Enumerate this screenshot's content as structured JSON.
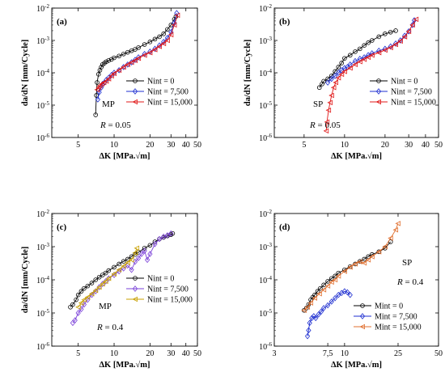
{
  "chart_data": [
    {
      "type": "line",
      "panel_label": "(a)",
      "xlabel": "ΔK [MPa.√m]",
      "ylabel": "da/dN [mm/Cycle]",
      "xscale": "log",
      "yscale": "log",
      "xlim": [
        3,
        50
      ],
      "ylim": [
        1e-06,
        0.01
      ],
      "xticks": [
        5,
        10,
        20,
        30,
        40,
        50
      ],
      "yticks": [
        1e-06,
        1e-05,
        0.0001,
        0.001,
        0.01
      ],
      "annotations": [
        "MP",
        "R = 0.05"
      ],
      "legend": "center-right",
      "series": [
        {
          "name": "Nint = 0",
          "color": "#000000",
          "marker": "circle",
          "x": [
            7.0,
            7.1,
            7.2,
            7.4,
            7.6,
            7.8,
            8.0,
            8.3,
            8.6,
            9.0,
            9.5,
            10,
            11,
            12,
            13,
            14,
            15,
            16,
            18,
            20,
            22,
            24,
            26,
            28,
            30,
            32,
            33
          ],
          "y": [
            5e-06,
            2e-05,
            5e-05,
            9e-05,
            0.00012,
            0.00015,
            0.00018,
            0.0002,
            0.00022,
            0.00024,
            0.00026,
            0.00029,
            0.00033,
            0.00038,
            0.00043,
            0.00048,
            0.00053,
            0.0006,
            0.00075,
            0.0009,
            0.0011,
            0.0013,
            0.0016,
            0.0022,
            0.003,
            0.0045,
            0.0055
          ]
        },
        {
          "name": "Nint = 7,500",
          "color": "#1f2fd0",
          "marker": "diamond",
          "x": [
            7.3,
            7.5,
            7.8,
            8.0,
            8.3,
            8.6,
            9.0,
            9.5,
            10,
            11,
            12,
            13,
            14,
            15,
            16,
            18,
            20,
            22,
            24,
            26,
            28,
            30,
            32,
            33.5
          ],
          "y": [
            1.5e-05,
            2.5e-05,
            3.5e-05,
            4.5e-05,
            5e-05,
            6e-05,
            7e-05,
            8.5e-05,
            0.0001,
            0.00012,
            0.00015,
            0.00018,
            0.00021,
            0.00025,
            0.0003,
            0.00038,
            0.00045,
            0.00055,
            0.0007,
            0.0009,
            0.0012,
            0.0018,
            0.0035,
            0.007
          ]
        },
        {
          "name": "Nint = 15,000",
          "color": "#e01818",
          "marker": "triangle-left",
          "x": [
            7.2,
            7.4,
            7.6,
            7.9,
            8.2,
            8.6,
            9.0,
            9.5,
            10,
            11,
            12,
            13,
            14,
            15,
            16,
            18,
            20,
            22,
            24,
            26,
            28,
            30,
            32,
            34
          ],
          "y": [
            3e-05,
            3.5e-05,
            4e-05,
            4.5e-05,
            5e-05,
            5.5e-05,
            6.5e-05,
            8e-05,
            9.5e-05,
            0.00012,
            0.00015,
            0.00018,
            0.00021,
            0.00024,
            0.00028,
            0.00035,
            0.00042,
            0.00052,
            0.00065,
            0.0008,
            0.001,
            0.0015,
            0.003,
            0.006
          ]
        }
      ]
    },
    {
      "type": "line",
      "panel_label": "(b)",
      "xlabel": "ΔK [MPa.√m]",
      "ylabel": "da/dN [mm/Cycle]",
      "xscale": "log",
      "yscale": "log",
      "xlim": [
        3,
        50
      ],
      "ylim": [
        1e-06,
        0.01
      ],
      "xticks": [
        5,
        10,
        20,
        30,
        40,
        50
      ],
      "yticks": [
        1e-06,
        1e-05,
        0.0001,
        0.001,
        0.01
      ],
      "annotations": [
        "SP",
        "R = 0.05"
      ],
      "legend": "center-right",
      "series": [
        {
          "name": "Nint = 0",
          "color": "#000000",
          "marker": "circle",
          "x": [
            6.5,
            6.8,
            7.0,
            7.5,
            8.0,
            8.5,
            9.0,
            9.5,
            10,
            11,
            12,
            13,
            14,
            15,
            16,
            18,
            20,
            22,
            24
          ],
          "y": [
            3.5e-05,
            4.5e-05,
            5.5e-05,
            6.5e-05,
            8e-05,
            0.00011,
            0.00015,
            0.0002,
            0.00028,
            0.00035,
            0.00045,
            0.00055,
            0.0007,
            0.00085,
            0.001,
            0.0013,
            0.0016,
            0.0018,
            0.002
          ]
        },
        {
          "name": "Nint = 7,500",
          "color": "#1f2fd0",
          "marker": "diamond",
          "x": [
            7.5,
            8.0,
            8.5,
            9.0,
            9.5,
            10,
            10.5,
            11,
            12,
            13,
            14,
            15,
            16,
            18,
            20,
            22,
            24,
            26,
            28,
            30,
            32,
            33
          ],
          "y": [
            5e-05,
            6.5e-05,
            8e-05,
            0.0001,
            0.00012,
            0.00014,
            0.00015,
            0.00018,
            0.00023,
            0.00027,
            0.0003,
            0.00035,
            0.0004,
            0.00048,
            0.00055,
            0.00065,
            0.0008,
            0.001,
            0.0014,
            0.0019,
            0.003,
            0.0042
          ]
        },
        {
          "name": "Nint = 15,000",
          "color": "#e01818",
          "marker": "triangle-left",
          "x": [
            7.3,
            7.4,
            7.6,
            7.8,
            8.0,
            8.3,
            8.6,
            9.0,
            9.5,
            10,
            11,
            12,
            13,
            14,
            15,
            16,
            18,
            20,
            22,
            24,
            26,
            28,
            30,
            32,
            34
          ],
          "y": [
            1.6e-06,
            3e-06,
            7e-06,
            1.2e-05,
            2e-05,
            3.5e-05,
            5e-05,
            7e-05,
            9e-05,
            0.00011,
            0.00014,
            0.00018,
            0.00022,
            0.00026,
            0.0003,
            0.00035,
            0.00042,
            0.0005,
            0.0006,
            0.00075,
            0.00095,
            0.0013,
            0.0019,
            0.003,
            0.0045
          ]
        }
      ]
    },
    {
      "type": "line",
      "panel_label": "(c)",
      "xlabel": "ΔK [MPa.√m]",
      "ylabel": "da/dN [mm/Cycle]",
      "xscale": "log",
      "yscale": "log",
      "xlim": [
        3,
        50
      ],
      "ylim": [
        1e-06,
        0.01
      ],
      "xticks": [
        5,
        10,
        20,
        30,
        40,
        50
      ],
      "yticks": [
        1e-06,
        1e-05,
        0.0001,
        0.001,
        0.01
      ],
      "annotations": [
        "MP",
        "R = 0.4"
      ],
      "legend": "center-right",
      "series": [
        {
          "name": "Nint = 0",
          "color": "#000000",
          "marker": "circle",
          "x": [
            4.3,
            4.5,
            4.8,
            5.0,
            5.3,
            5.6,
            6.0,
            6.5,
            7.0,
            7.5,
            8.0,
            8.5,
            9.0,
            10,
            11,
            12,
            13,
            14,
            15,
            16,
            18,
            20,
            22,
            24,
            26,
            28,
            30,
            31
          ],
          "y": [
            1.5e-05,
            1.8e-05,
            2.5e-05,
            3.5e-05,
            4.5e-05,
            5.5e-05,
            6.5e-05,
            8e-05,
            0.0001,
            0.00012,
            0.00014,
            0.00016,
            0.00019,
            0.00024,
            0.0003,
            0.00036,
            0.00042,
            0.0005,
            0.00058,
            0.00068,
            0.0009,
            0.0011,
            0.0014,
            0.0017,
            0.0019,
            0.0021,
            0.0023,
            0.0025
          ]
        },
        {
          "name": "Nint = 7,500",
          "color": "#7a40d8",
          "marker": "diamond",
          "x": [
            4.5,
            4.7,
            5.0,
            5.3,
            5.6,
            6.0,
            6.5,
            7.0,
            7.5,
            8.0,
            8.5,
            9.0,
            10,
            11,
            12,
            13,
            14,
            15,
            16,
            17,
            18,
            19,
            20,
            22,
            24,
            26,
            28,
            30
          ],
          "y": [
            5e-06,
            6e-06,
            1e-05,
            1.3e-05,
            1.8e-05,
            2.5e-05,
            3.5e-05,
            4.5e-05,
            6e-05,
            7.5e-05,
            9e-05,
            0.00011,
            0.00014,
            0.00018,
            0.00022,
            0.00027,
            0.0002,
            0.00035,
            0.00045,
            0.0006,
            0.00075,
            0.0004,
            0.0006,
            0.0012,
            0.0017,
            0.002,
            0.0022,
            0.0025
          ]
        },
        {
          "name": "Nint = 15,000",
          "color": "#c8a000",
          "marker": "triangle-left",
          "x": [
            5.0,
            5.3,
            5.6,
            6.0,
            6.5,
            7.0,
            7.5,
            8.0,
            8.5,
            9.0,
            10,
            11,
            12,
            13,
            14,
            15,
            15.5
          ],
          "y": [
            1.5e-05,
            2e-05,
            2.5e-05,
            3e-05,
            3.8e-05,
            4.8e-05,
            6e-05,
            7.5e-05,
            9e-05,
            0.00011,
            0.00015,
            0.0002,
            0.00026,
            0.00033,
            0.0004,
            0.00065,
            0.0009
          ]
        }
      ]
    },
    {
      "type": "line",
      "panel_label": "(d)",
      "xlabel": "ΔK [MPa.√m]",
      "ylabel": "",
      "xscale": "log",
      "yscale": "log",
      "xlim": [
        3,
        50
      ],
      "ylim": [
        1e-06,
        0.01
      ],
      "xticks": [
        3,
        7.5,
        10,
        25,
        50
      ],
      "xtick_labels": [
        "3",
        "7,5",
        "10",
        "25",
        "50"
      ],
      "yticks": [
        1e-06,
        1e-05,
        0.0001,
        0.001,
        0.01
      ],
      "annotations": [
        "SP",
        "R = 0.4"
      ],
      "legend": "bottom-right",
      "series": [
        {
          "name": "Mint = 0",
          "color": "#000000",
          "marker": "circle",
          "x": [
            5.0,
            5.2,
            5.4,
            5.6,
            5.8,
            6.0,
            6.3,
            6.6,
            7.0,
            7.5,
            8.0,
            8.5,
            9.0,
            10,
            11,
            12,
            13,
            14,
            15,
            16,
            18,
            20,
            22
          ],
          "y": [
            1.2e-05,
            1.4e-05,
            1.8e-05,
            2.5e-05,
            3e-05,
            3.5e-05,
            4.5e-05,
            5.5e-05,
            7e-05,
            9e-05,
            0.00011,
            0.00013,
            0.00016,
            0.0002,
            0.00025,
            0.0003,
            0.00036,
            0.00042,
            0.0005,
            0.00058,
            0.0007,
            0.0009,
            0.0014
          ]
        },
        {
          "name": "Mint = 7,500",
          "color": "#1f2fd0",
          "marker": "diamond",
          "x": [
            5.3,
            5.4,
            5.5,
            5.7,
            5.9,
            6.1,
            6.4,
            6.7,
            7.0,
            7.5,
            8.0,
            8.5,
            9.0,
            9.5,
            10,
            10.5,
            11
          ],
          "y": [
            2e-06,
            3e-06,
            5e-06,
            7e-06,
            8e-06,
            7e-06,
            9e-06,
            1.1e-05,
            1.4e-05,
            1.7e-05,
            2.2e-05,
            2.8e-05,
            3.5e-05,
            4e-05,
            4.5e-05,
            4.2e-05,
            3.5e-05
          ]
        },
        {
          "name": "Mint = 15,000",
          "color": "#e07030",
          "marker": "triangle-left",
          "x": [
            5.0,
            5.3,
            5.6,
            6.0,
            6.5,
            7.0,
            7.5,
            8.0,
            8.5,
            9.0,
            10,
            11,
            12,
            13,
            14,
            15,
            16,
            18,
            20,
            22,
            24,
            25
          ],
          "y": [
            1.2e-05,
            1.5e-05,
            2e-05,
            2.8e-05,
            3.8e-05,
            5e-05,
            6.5e-05,
            8.5e-05,
            0.0001,
            0.00013,
            0.00018,
            0.00024,
            0.0003,
            0.00035,
            0.00032,
            0.0004,
            0.0005,
            0.0007,
            0.001,
            0.0018,
            0.0032,
            0.005
          ]
        }
      ]
    }
  ]
}
